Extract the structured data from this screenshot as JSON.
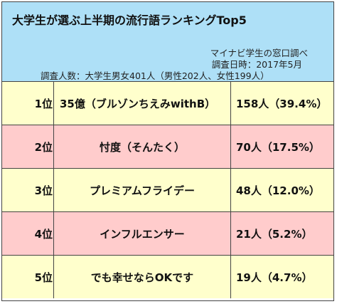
{
  "header": {
    "title": "大学生が選ぶ上半期の流行語ランキングTop5",
    "source": "マイナビ学生の窓口調べ",
    "survey_date": "調査日時：2017年5月",
    "respondents": "調査人数：大学生男女401人（男性202人、女性199人）"
  },
  "ranking": [
    {
      "rank": "1位",
      "word": "35億（ブルゾンちえみwithB）",
      "count": "158人（39.4%）"
    },
    {
      "rank": "2位",
      "word": "忖度（そんたく）",
      "count": "70人（17.5%）"
    },
    {
      "rank": "3位",
      "word": "プレミアムフライデー",
      "count": "48人（12.0%）"
    },
    {
      "rank": "4位",
      "word": "インフルエンサー",
      "count": "21人（5.2%）"
    },
    {
      "rank": "5位",
      "word": "でも幸せならOKです",
      "count": "19人（4.7%）"
    }
  ],
  "colors": {
    "header_bg": "#aee0f7",
    "row_odd_bg": "#ffffcc",
    "row_even_bg": "#ffcccc",
    "border": "#444444"
  }
}
